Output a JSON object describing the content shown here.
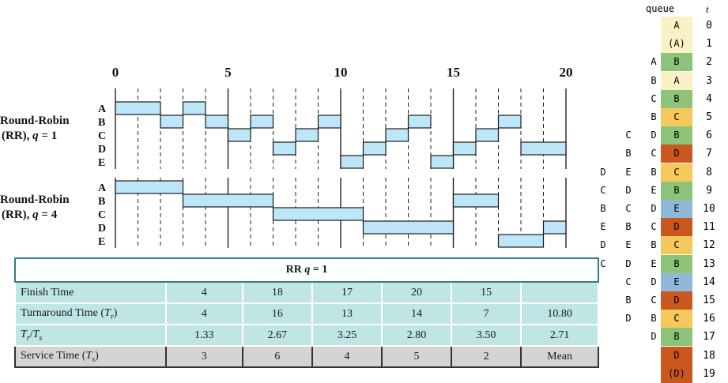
{
  "chart_data": {
    "type": "gantt",
    "axis": {
      "min": 0,
      "max": 20,
      "tick_labels": [
        "0",
        "5",
        "10",
        "15",
        "20"
      ]
    },
    "processes": [
      "A",
      "B",
      "C",
      "D",
      "E"
    ],
    "charts": [
      {
        "label_line1": "Round-Robin",
        "label_line2_pre": "(RR), ",
        "label_line2_q": "q",
        "label_line2_post": " = 1",
        "bars": [
          {
            "p": "A",
            "s": 0,
            "e": 2
          },
          {
            "p": "B",
            "s": 2,
            "e": 3
          },
          {
            "p": "A",
            "s": 3,
            "e": 4
          },
          {
            "p": "B",
            "s": 4,
            "e": 5
          },
          {
            "p": "C",
            "s": 5,
            "e": 6
          },
          {
            "p": "B",
            "s": 6,
            "e": 7
          },
          {
            "p": "D",
            "s": 7,
            "e": 8
          },
          {
            "p": "C",
            "s": 8,
            "e": 9
          },
          {
            "p": "B",
            "s": 9,
            "e": 10
          },
          {
            "p": "E",
            "s": 10,
            "e": 11
          },
          {
            "p": "D",
            "s": 11,
            "e": 12
          },
          {
            "p": "C",
            "s": 12,
            "e": 13
          },
          {
            "p": "B",
            "s": 13,
            "e": 14
          },
          {
            "p": "E",
            "s": 14,
            "e": 15
          },
          {
            "p": "D",
            "s": 15,
            "e": 16
          },
          {
            "p": "C",
            "s": 16,
            "e": 17
          },
          {
            "p": "B",
            "s": 17,
            "e": 18
          },
          {
            "p": "D",
            "s": 18,
            "e": 20
          }
        ]
      },
      {
        "label_line1": "Round-Robin",
        "label_line2_pre": "(RR), ",
        "label_line2_q": "q",
        "label_line2_post": " = 4",
        "bars": [
          {
            "p": "A",
            "s": 0,
            "e": 3
          },
          {
            "p": "B",
            "s": 3,
            "e": 7
          },
          {
            "p": "C",
            "s": 7,
            "e": 11
          },
          {
            "p": "D",
            "s": 11,
            "e": 15
          },
          {
            "p": "B",
            "s": 15,
            "e": 17
          },
          {
            "p": "E",
            "s": 17,
            "e": 19
          },
          {
            "p": "D",
            "s": 19,
            "e": 20
          }
        ]
      }
    ]
  },
  "table": {
    "title_pre": "RR ",
    "title_q": "q",
    "title_post": " = 1",
    "rows": [
      {
        "label": "Finish Time",
        "values": [
          "4",
          "18",
          "17",
          "20",
          "15",
          ""
        ]
      },
      {
        "label": "Turnaround Time (",
        "sub": "r",
        "sym": "T",
        "label_post": ")",
        "values": [
          "4",
          "16",
          "13",
          "14",
          "7",
          "10.80"
        ]
      },
      {
        "label": "Tr/Ts",
        "values": [
          "1.33",
          "2.67",
          "3.25",
          "2.80",
          "3.50",
          "2.71"
        ]
      }
    ],
    "service": {
      "label": "Service Time (",
      "sym": "T",
      "sub": "s",
      "label_post": ")",
      "values": [
        "3",
        "6",
        "4",
        "5",
        "2",
        "Mean"
      ]
    }
  },
  "queue_panel": {
    "header_queue": "queue",
    "header_t": "t",
    "colors": {
      "A": "#fbf1c6",
      "B": "#8dc47a",
      "C": "#f4c85a",
      "D": "#c9571e",
      "E": "#8fb8d9"
    },
    "rows": [
      {
        "t": "0",
        "run": "A",
        "color": "A",
        "q": []
      },
      {
        "t": "1",
        "run": "(A)",
        "color": "A",
        "q": []
      },
      {
        "t": "2",
        "run": "B",
        "color": "B",
        "q": [
          "A"
        ]
      },
      {
        "t": "3",
        "run": "A",
        "color": "A",
        "q": [
          "B"
        ]
      },
      {
        "t": "4",
        "run": "B",
        "color": "B",
        "q": [
          "C"
        ]
      },
      {
        "t": "5",
        "run": "C",
        "color": "C",
        "q": [
          "B"
        ]
      },
      {
        "t": "6",
        "run": "B",
        "color": "B",
        "q": [
          "C",
          "D"
        ]
      },
      {
        "t": "7",
        "run": "D",
        "color": "D",
        "q": [
          "B",
          "C"
        ]
      },
      {
        "t": "8",
        "run": "C",
        "color": "C",
        "q": [
          "D",
          "E",
          "B"
        ]
      },
      {
        "t": "9",
        "run": "B",
        "color": "B",
        "q": [
          "C",
          "D",
          "E"
        ]
      },
      {
        "t": "10",
        "run": "E",
        "color": "E",
        "q": [
          "B",
          "C",
          "D"
        ]
      },
      {
        "t": "11",
        "run": "D",
        "color": "D",
        "q": [
          "E",
          "B",
          "C"
        ]
      },
      {
        "t": "12",
        "run": "C",
        "color": "C",
        "q": [
          "D",
          "E",
          "B"
        ]
      },
      {
        "t": "13",
        "run": "B",
        "color": "B",
        "q": [
          "C",
          "D",
          "E"
        ]
      },
      {
        "t": "14",
        "run": "E",
        "color": "E",
        "q": [
          "C",
          "D"
        ]
      },
      {
        "t": "15",
        "run": "D",
        "color": "D",
        "q": [
          "B",
          "C"
        ]
      },
      {
        "t": "16",
        "run": "C",
        "color": "C",
        "q": [
          "D",
          "B"
        ]
      },
      {
        "t": "17",
        "run": "B",
        "color": "B",
        "q": [
          "D"
        ]
      },
      {
        "t": "18",
        "run": "D",
        "color": "D",
        "q": []
      },
      {
        "t": "19",
        "run": "(D)",
        "color": "D",
        "q": []
      }
    ]
  }
}
